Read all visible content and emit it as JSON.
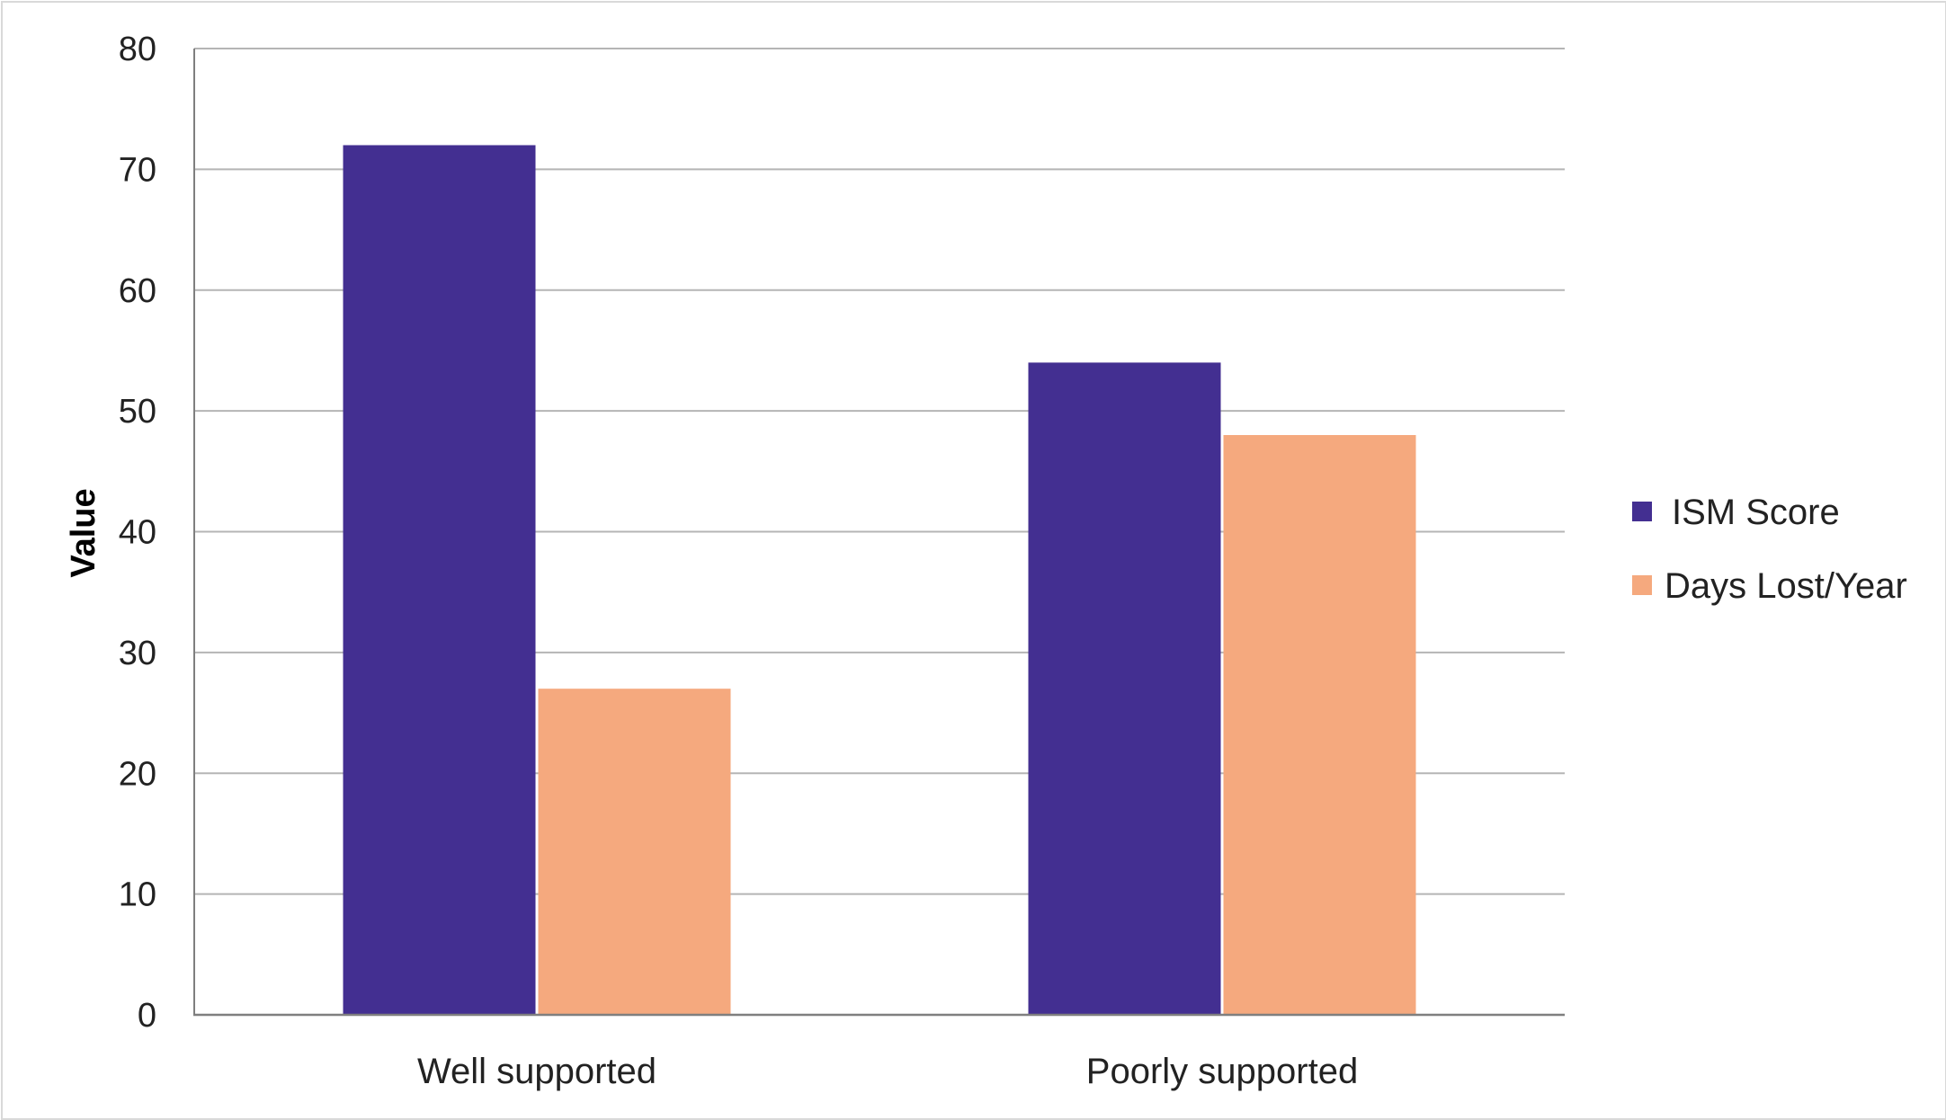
{
  "chart_data": {
    "type": "bar",
    "title": "",
    "xlabel": "",
    "ylabel": "Value",
    "categories": [
      "Well supported",
      "Poorly supported"
    ],
    "series": [
      {
        "name": "ISM Score",
        "values": [
          72,
          54
        ],
        "color": "#432F91"
      },
      {
        "name": "Days Lost/Year",
        "values": [
          27,
          48
        ],
        "color": "#F5A97E"
      }
    ],
    "ylim": [
      0,
      80
    ],
    "yticks": [
      0,
      10,
      20,
      30,
      40,
      50,
      60,
      70,
      80
    ],
    "grid": true,
    "legend_position": "right",
    "gridline_color": "#b5b5b5",
    "axis_color": "#7f7f7f"
  }
}
